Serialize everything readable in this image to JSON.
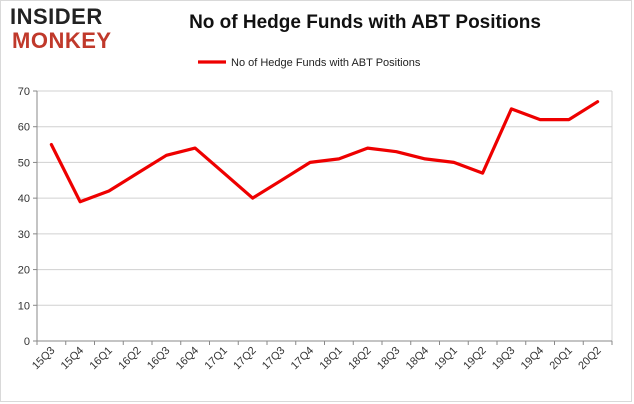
{
  "logo": {
    "line1": "INSIDER",
    "line2": "MONKEY"
  },
  "colors": {
    "series": "#ee0000",
    "grid": "#d0d0d0",
    "axis": "#888888",
    "logo_accent": "#c0392b"
  },
  "chart_data": {
    "type": "line",
    "title": "No of Hedge Funds with ABT Positions",
    "xlabel": "",
    "ylabel": "",
    "ylim": [
      0,
      70
    ],
    "yticks": [
      0,
      10,
      20,
      30,
      40,
      50,
      60,
      70
    ],
    "grid": true,
    "legend_position": "top-center",
    "categories": [
      "15Q3",
      "15Q4",
      "16Q1",
      "16Q2",
      "16Q3",
      "16Q4",
      "17Q1",
      "17Q2",
      "17Q3",
      "17Q4",
      "18Q1",
      "18Q2",
      "18Q3",
      "18Q4",
      "19Q1",
      "19Q2",
      "19Q3",
      "19Q4",
      "20Q1",
      "20Q2"
    ],
    "series": [
      {
        "name": "No of Hedge Funds with ABT Positions",
        "values": [
          55,
          39,
          42,
          47,
          52,
          54,
          47,
          40,
          45,
          50,
          51,
          54,
          53,
          51,
          50,
          47,
          65,
          62,
          62,
          67
        ]
      }
    ]
  }
}
